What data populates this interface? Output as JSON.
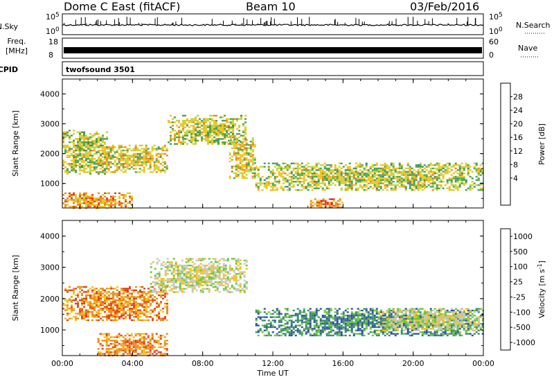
{
  "header": {
    "station": "Dome C East (fitACF)",
    "beam": "Beam 10",
    "date": "03/Feb/2016"
  },
  "noise_panel": {
    "left_label": "N.Sky",
    "left_ticks": [
      "10^5",
      "10^0"
    ],
    "right_ticks": [
      "10^5",
      "10^0"
    ],
    "right_label": "N.Search"
  },
  "freq_panel": {
    "left_label_top": "Freq.",
    "left_label_unit": "[MHz]",
    "left_ticks": [
      "18",
      "8"
    ],
    "right_ticks": [
      "60",
      "0"
    ],
    "right_label": "Nave"
  },
  "cpid_panel": {
    "left_label": "CPID",
    "program": "twofsound 3501"
  },
  "colors": {
    "power_scale": [
      "#0000ff",
      "#2e4fa8",
      "#3a8a6c",
      "#4ea34c",
      "#c9d23a",
      "#f2c21d",
      "#ee8a1a",
      "#e4431a",
      "#d40a0a"
    ],
    "velocity_scale": [
      "#d40a0a",
      "#e4431a",
      "#ee8a1a",
      "#f2c21d",
      "#c8c8c0",
      "#6cc63c",
      "#3a8a6c",
      "#2e4fa8",
      "#1a28c8"
    ]
  },
  "chart_data": [
    {
      "type": "heatmap",
      "panel": "power",
      "xlabel": "",
      "ylabel": "Slant Range [km]",
      "xlim": [
        0,
        24
      ],
      "ylim": [
        180,
        4500
      ],
      "yticks": [
        "4000",
        "3000",
        "2000",
        "1000"
      ],
      "xticks": [
        "00:00",
        "04:00",
        "08:00",
        "12:00",
        "16:00",
        "20:00",
        "00:00"
      ],
      "colorbar": {
        "label": "Power [dB]",
        "ticks": [
          "28",
          "24",
          "20",
          "16",
          "12",
          "8",
          "4"
        ],
        "range": [
          0,
          32
        ]
      },
      "echo_regions": [
        {
          "t0": 0,
          "t1": 2.5,
          "r0": 1300,
          "r1": 2800,
          "level": 16
        },
        {
          "t0": 2,
          "t1": 6,
          "r0": 1400,
          "r1": 2300,
          "level": 18
        },
        {
          "t0": 6,
          "t1": 10.5,
          "r0": 2300,
          "r1": 3300,
          "level": 16
        },
        {
          "t0": 9.5,
          "t1": 11,
          "r0": 1200,
          "r1": 2600,
          "level": 18
        },
        {
          "t0": 11,
          "t1": 24,
          "r0": 800,
          "r1": 1700,
          "level": 16
        },
        {
          "t0": 14,
          "t1": 16,
          "r0": 180,
          "r1": 500,
          "level": 24
        },
        {
          "t0": 0,
          "t1": 4,
          "r0": 180,
          "r1": 700,
          "level": 22
        }
      ]
    },
    {
      "type": "heatmap",
      "panel": "velocity",
      "xlabel": "Time UT",
      "ylabel": "Slant Range [km]",
      "xlim": [
        0,
        24
      ],
      "ylim": [
        180,
        4500
      ],
      "yticks": [
        "4000",
        "3000",
        "2000",
        "1000"
      ],
      "xticks": [
        "00:00",
        "04:00",
        "08:00",
        "12:00",
        "16:00",
        "20:00",
        "00:00"
      ],
      "colorbar": {
        "label": "Velocity [m s^-1]",
        "ticks": [
          "1000",
          "500",
          "100",
          "25",
          "-25",
          "-100",
          "-500",
          "-1000"
        ]
      },
      "echo_regions": [
        {
          "t0": 0,
          "t1": 6,
          "r0": 1300,
          "r1": 2400,
          "level": -100
        },
        {
          "t0": 5,
          "t1": 10.5,
          "r0": 2200,
          "r1": 3300,
          "level": 0
        },
        {
          "t0": 2,
          "t1": 6,
          "r0": 180,
          "r1": 900,
          "level": -100
        },
        {
          "t0": 11,
          "t1": 24,
          "r0": 800,
          "r1": 1700,
          "level": 100
        },
        {
          "t0": 18,
          "t1": 24,
          "r0": 1000,
          "r1": 1700,
          "level": 0
        }
      ]
    }
  ]
}
